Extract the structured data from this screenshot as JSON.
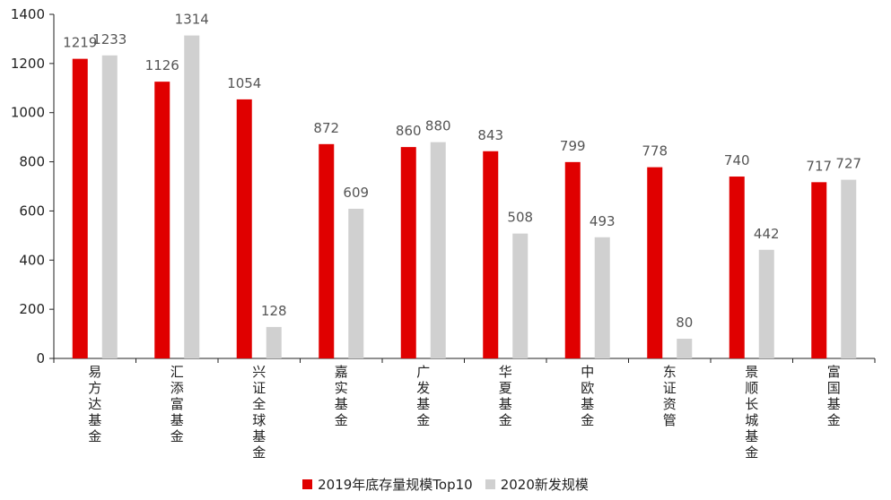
{
  "chart_data": {
    "type": "bar",
    "categories": [
      "易方达基金",
      "汇添富基金",
      "兴证全球基金",
      "嘉实基金",
      "广发基金",
      "华夏基金",
      "中欧基金",
      "东证资管",
      "景顺长城基金",
      "富国基金"
    ],
    "series": [
      {
        "name": "2019年底存量规模Top10",
        "color": "#e00000",
        "values": [
          1219,
          1126,
          1054,
          872,
          860,
          843,
          799,
          778,
          740,
          717
        ]
      },
      {
        "name": "2020新发规模",
        "color": "#d0d0d0",
        "values": [
          1233,
          1314,
          128,
          609,
          880,
          508,
          493,
          80,
          442,
          727
        ]
      }
    ],
    "ylim": [
      0,
      1400
    ],
    "yticks": [
      0,
      200,
      400,
      600,
      800,
      1000,
      1200,
      1400
    ],
    "grid": false,
    "legend": "bottom"
  }
}
